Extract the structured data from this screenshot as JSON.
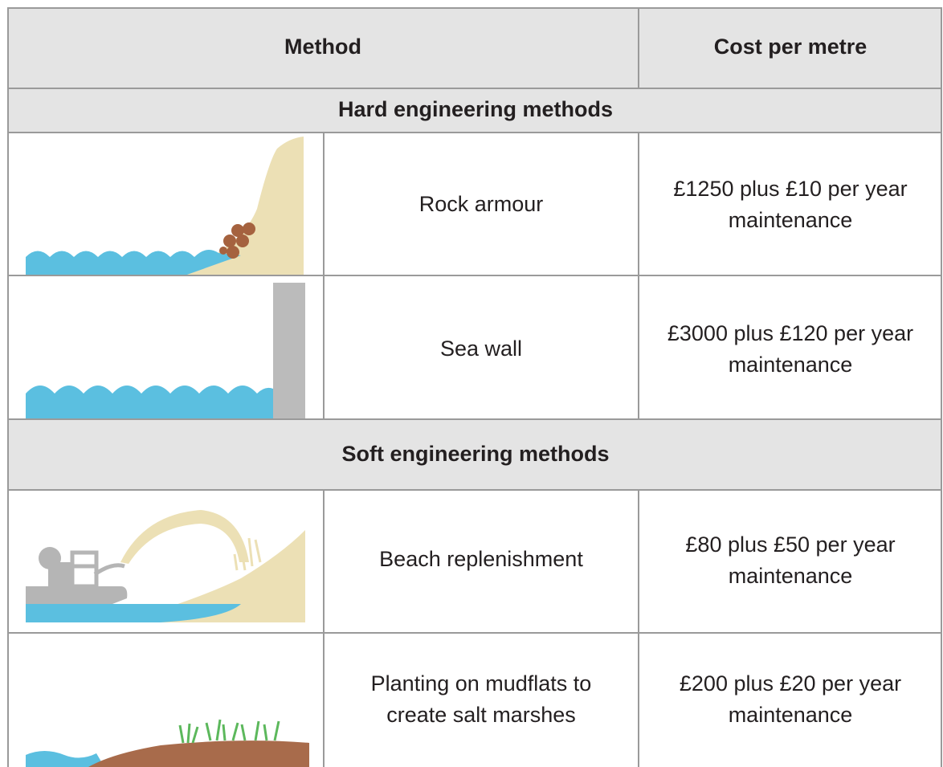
{
  "table": {
    "header": [
      "Method",
      "Cost per metre"
    ],
    "sections": [
      {
        "title": "Hard engineering methods",
        "rows": [
          {
            "method": [
              "Rock armour"
            ],
            "cost": [
              "£1250 plus £10 per year",
              "maintenance"
            ]
          },
          {
            "method": [
              "Sea wall"
            ],
            "cost": [
              "£3000 plus £120 per year",
              "maintenance"
            ]
          }
        ]
      },
      {
        "title": "Soft engineering methods",
        "rows": [
          {
            "method": [
              "Beach replenishment"
            ],
            "cost": [
              "£80 plus £50 per year",
              "maintenance"
            ]
          },
          {
            "method": [
              "Planting on mudflats to",
              "create salt marshes"
            ],
            "cost": [
              "£200 plus £20 per year",
              "maintenance"
            ]
          }
        ]
      }
    ]
  }
}
